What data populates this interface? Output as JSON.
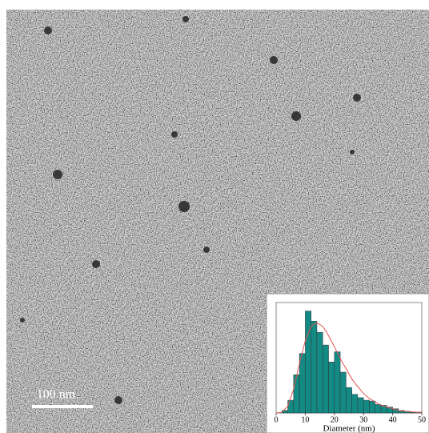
{
  "scale_bar": {
    "label": "100 nm"
  },
  "chart_data": {
    "type": "histogram",
    "xlabel": "Diameter (nm)",
    "bins": [
      2,
      4,
      6,
      8,
      10,
      12,
      14,
      16,
      18,
      20,
      22,
      24,
      26,
      28,
      30,
      32,
      34,
      36,
      38,
      40,
      42,
      44,
      46,
      48,
      50
    ],
    "counts": [
      3,
      15,
      45,
      70,
      120,
      108,
      95,
      80,
      60,
      72,
      48,
      30,
      22,
      18,
      15,
      14,
      10,
      9,
      7,
      5,
      3,
      2,
      1,
      1
    ],
    "color": "#138a84",
    "fit": {
      "color": "#e05050",
      "x": [
        0,
        2,
        4,
        6,
        8,
        10,
        12,
        14,
        16,
        18,
        20,
        22,
        24,
        26,
        28,
        30,
        32,
        34,
        36,
        38,
        40,
        42,
        44,
        46,
        48,
        50
      ],
      "values": [
        0,
        1,
        8,
        28,
        58,
        85,
        102,
        106,
        102,
        91,
        78,
        64,
        52,
        40,
        31,
        23,
        17,
        13,
        9,
        7,
        5,
        3,
        2,
        1.5,
        1,
        0.7
      ]
    },
    "xlim": [
      0,
      50
    ],
    "xticks": [
      0,
      10,
      20,
      30,
      40,
      50
    ],
    "ylim": [
      0,
      130
    ]
  }
}
